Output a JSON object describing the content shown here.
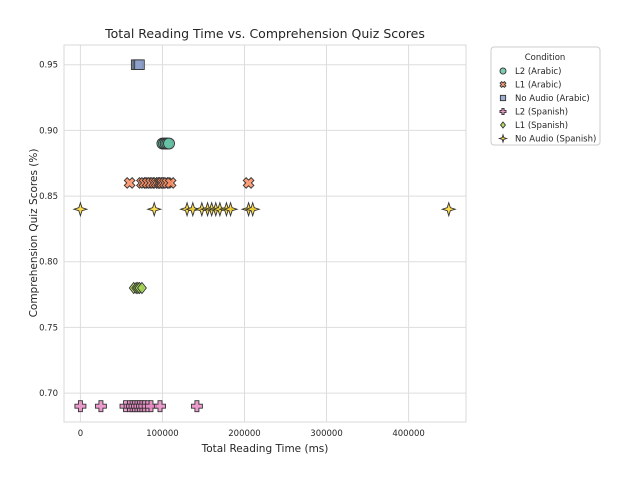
{
  "chart_data": {
    "type": "scatter",
    "title": "Total Reading Time vs. Comprehension Quiz Scores",
    "xlabel": "Total Reading Time (ms)",
    "ylabel": "Comprehension Quiz Scores (%)",
    "xlim": [
      -20000,
      470000
    ],
    "ylim": [
      0.678,
      0.965
    ],
    "x_ticks": [
      0,
      100000,
      200000,
      300000,
      400000
    ],
    "x_tick_labels": [
      "0",
      "100000",
      "200000",
      "300000",
      "400000"
    ],
    "y_ticks": [
      0.7,
      0.75,
      0.8,
      0.85,
      0.9,
      0.95
    ],
    "y_tick_labels": [
      "0.70",
      "0.75",
      "0.80",
      "0.85",
      "0.90",
      "0.95"
    ],
    "grid": true,
    "legend": {
      "title": "Condition",
      "placement": "outside-top-right"
    },
    "series": [
      {
        "name": "L2 (Arabic)",
        "marker": "circle",
        "color": "#66c2a5",
        "points": [
          [
            100000,
            0.89
          ],
          [
            102000,
            0.89
          ],
          [
            104000,
            0.89
          ],
          [
            106000,
            0.89
          ],
          [
            108000,
            0.89
          ]
        ]
      },
      {
        "name": "L1 (Arabic)",
        "marker": "x",
        "color": "#fc8d62",
        "points": [
          [
            60000,
            0.86
          ],
          [
            75000,
            0.86
          ],
          [
            78000,
            0.86
          ],
          [
            82000,
            0.86
          ],
          [
            86000,
            0.86
          ],
          [
            90000,
            0.86
          ],
          [
            93000,
            0.86
          ],
          [
            96000,
            0.86
          ],
          [
            98000,
            0.86
          ],
          [
            100000,
            0.86
          ],
          [
            103000,
            0.86
          ],
          [
            106000,
            0.86
          ],
          [
            110000,
            0.86
          ],
          [
            205000,
            0.86
          ]
        ]
      },
      {
        "name": "No Audio (Arabic)",
        "marker": "square",
        "color": "#8da0cb",
        "points": [
          [
            68000,
            0.95
          ],
          [
            70000,
            0.95
          ],
          [
            72000,
            0.95
          ]
        ]
      },
      {
        "name": "L2 (Spanish)",
        "marker": "plus",
        "color": "#e78ac3",
        "points": [
          [
            0,
            0.69
          ],
          [
            25000,
            0.69
          ],
          [
            55000,
            0.69
          ],
          [
            60000,
            0.69
          ],
          [
            63000,
            0.69
          ],
          [
            66000,
            0.69
          ],
          [
            69000,
            0.69
          ],
          [
            72000,
            0.69
          ],
          [
            75000,
            0.69
          ],
          [
            78000,
            0.69
          ],
          [
            82000,
            0.69
          ],
          [
            86000,
            0.69
          ],
          [
            97000,
            0.69
          ],
          [
            142000,
            0.69
          ]
        ]
      },
      {
        "name": "L1 (Spanish)",
        "marker": "diamond",
        "color": "#a6d854",
        "points": [
          [
            65000,
            0.78
          ],
          [
            68000,
            0.78
          ],
          [
            70000,
            0.78
          ],
          [
            72000,
            0.78
          ],
          [
            75000,
            0.78
          ]
        ]
      },
      {
        "name": "No Audio (Spanish)",
        "marker": "star",
        "color": "#ffd92f",
        "points": [
          [
            0,
            0.84
          ],
          [
            90000,
            0.84
          ],
          [
            130000,
            0.84
          ],
          [
            137000,
            0.84
          ],
          [
            148000,
            0.84
          ],
          [
            155000,
            0.84
          ],
          [
            160000,
            0.84
          ],
          [
            165000,
            0.84
          ],
          [
            170000,
            0.84
          ],
          [
            178000,
            0.84
          ],
          [
            183000,
            0.84
          ],
          [
            205000,
            0.84
          ],
          [
            210000,
            0.84
          ],
          [
            449000,
            0.84
          ]
        ]
      }
    ]
  }
}
